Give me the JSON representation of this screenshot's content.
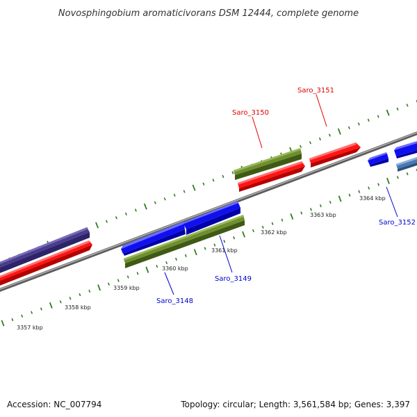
{
  "title": "Novosphingobium aromaticivorans DSM 12444, complete genome",
  "footer": {
    "accession": "Accession: NC_007794",
    "topology": "Topology: circular; Length: 3,561,584 bp; Genes: 3,397"
  },
  "colors": {
    "backbone": "#8a8a8a",
    "tick": "#2e7d1e",
    "label_red": "#dd0000",
    "label_blue": "#0000cc",
    "gene_red": "#ff1414",
    "gene_blue": "#1010ee",
    "gene_green": "#6e8f2e",
    "gene_purple": "#4a3c8c",
    "gene_steel": "#4a78b0"
  },
  "tick_labels": [
    "3357 kbp",
    "3358 kbp",
    "3359 kbp",
    "3360 kbp",
    "3361 kbp",
    "3362 kbp",
    "3363 kbp",
    "3364 kbp"
  ],
  "gene_labels": {
    "saro_3151": "Saro_3151",
    "saro_3150": "Saro_3150",
    "saro_3148": "Saro_3148",
    "saro_3149": "Saro_3149",
    "saro_3152": "Saro_3152"
  }
}
